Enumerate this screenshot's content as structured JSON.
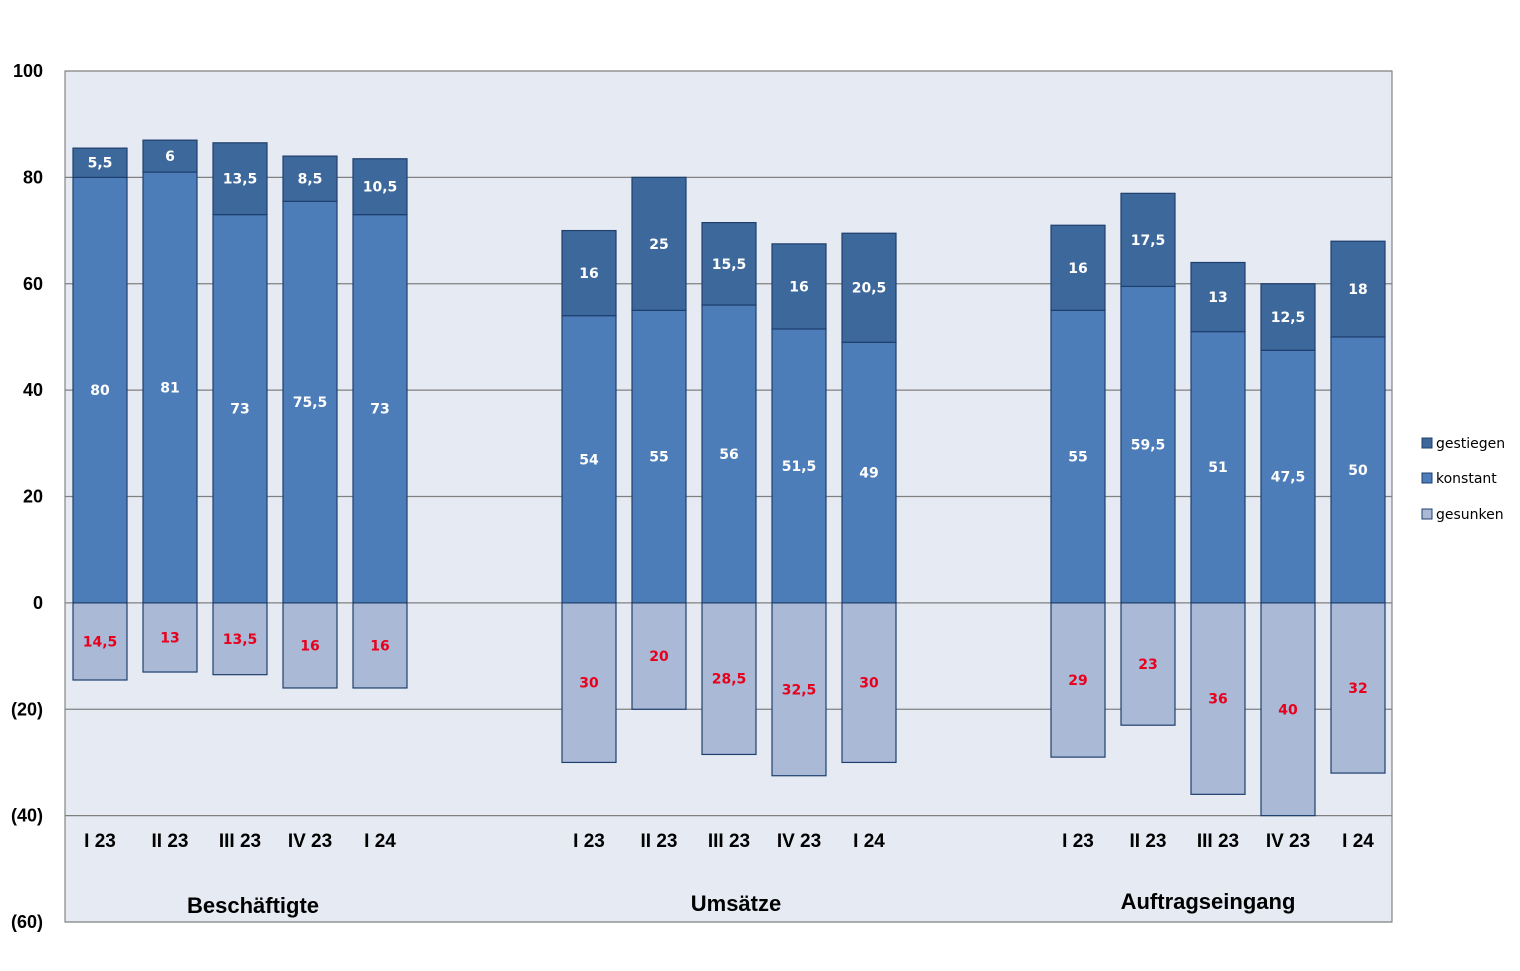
{
  "chart_data": {
    "type": "bar",
    "stacked": true,
    "ylim": [
      -60,
      100
    ],
    "yticks": [
      100,
      80,
      60,
      40,
      20,
      0,
      -20,
      -40,
      -60
    ],
    "ytick_labels": [
      "100",
      "80",
      "60",
      "40",
      "20",
      "0",
      "(20)",
      "(40)",
      "(60)"
    ],
    "grid": true,
    "legend_position": "right",
    "groups": [
      {
        "name": "Beschäftigte",
        "categories": [
          "I 23",
          "II 23",
          "III 23",
          "IV 23",
          "I 24"
        ],
        "gesunken": [
          14.5,
          13,
          13.5,
          16,
          16
        ],
        "konstant": [
          80,
          81,
          73,
          75.5,
          73
        ],
        "gestiegen": [
          5.5,
          6,
          13.5,
          8.5,
          10.5
        ],
        "gesunken_labels": [
          "14,5",
          "13",
          "13,5",
          "16",
          "16"
        ],
        "konstant_labels": [
          "80",
          "81",
          "73",
          "75,5",
          "73"
        ],
        "gestiegen_labels": [
          "5,5",
          "6",
          "13,5",
          "8,5",
          "10,5"
        ]
      },
      {
        "name": "Umsätze",
        "categories": [
          "I 23",
          "II 23",
          "III 23",
          "IV 23",
          "I 24"
        ],
        "gesunken": [
          30,
          20,
          28.5,
          32.5,
          30
        ],
        "konstant": [
          54,
          55,
          56,
          51.5,
          49
        ],
        "gestiegen": [
          16,
          25,
          15.5,
          16,
          20.5
        ],
        "gesunken_labels": [
          "30",
          "20",
          "28,5",
          "32,5",
          "30"
        ],
        "konstant_labels": [
          "54",
          "55",
          "56",
          "51,5",
          "49"
        ],
        "gestiegen_labels": [
          "16",
          "25",
          "15,5",
          "16",
          "20,5"
        ]
      },
      {
        "name": "Auftragseingang",
        "categories": [
          "I 23",
          "II 23",
          "III 23",
          "IV 23",
          "I 24"
        ],
        "gesunken": [
          29,
          23,
          36,
          40,
          32
        ],
        "konstant": [
          55,
          59.5,
          51,
          47.5,
          50
        ],
        "gestiegen": [
          16,
          17.5,
          13,
          12.5,
          18
        ],
        "gesunken_labels": [
          "29",
          "23",
          "36",
          "40",
          "32"
        ],
        "konstant_labels": [
          "55",
          "59,5",
          "51",
          "47,5",
          "50"
        ],
        "gestiegen_labels": [
          "16",
          "17,5",
          "13",
          "12,5",
          "18"
        ]
      }
    ],
    "legend": [
      {
        "key": "gestiegen",
        "label": "gestiegen"
      },
      {
        "key": "konstant",
        "label": "konstant"
      },
      {
        "key": "gesunken",
        "label": "gesunken"
      }
    ],
    "colors": {
      "gestiegen": "#3d689b",
      "konstant": "#4c7db9",
      "gesunken": "#a9b9d6",
      "bar_border": "#1f3f6e",
      "plot_bg": "#e6ebf3",
      "grid": "#808080",
      "label_light": "#ffffff",
      "label_negative": "#e8001c"
    }
  }
}
